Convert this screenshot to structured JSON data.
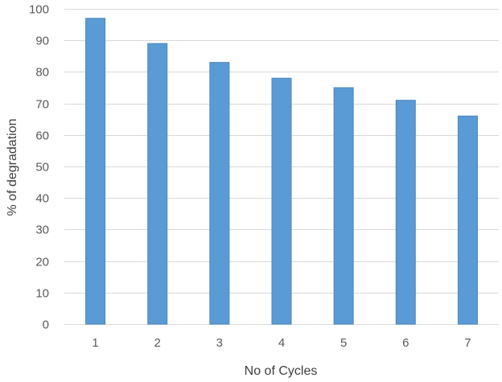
{
  "chart_data": {
    "type": "bar",
    "title": "",
    "xlabel": "No of Cycles",
    "ylabel": "% of degradation",
    "categories": [
      "1",
      "2",
      "3",
      "4",
      "5",
      "6",
      "7"
    ],
    "values": [
      97,
      89,
      83,
      78,
      75,
      71,
      66
    ],
    "ylim": [
      0,
      100
    ],
    "ytick_step": 10,
    "grid": true,
    "legend": "none",
    "bar_color": "#5B9BD5",
    "bar_edge_color": "#4A86C0",
    "grid_color": "#D9D9D9"
  }
}
